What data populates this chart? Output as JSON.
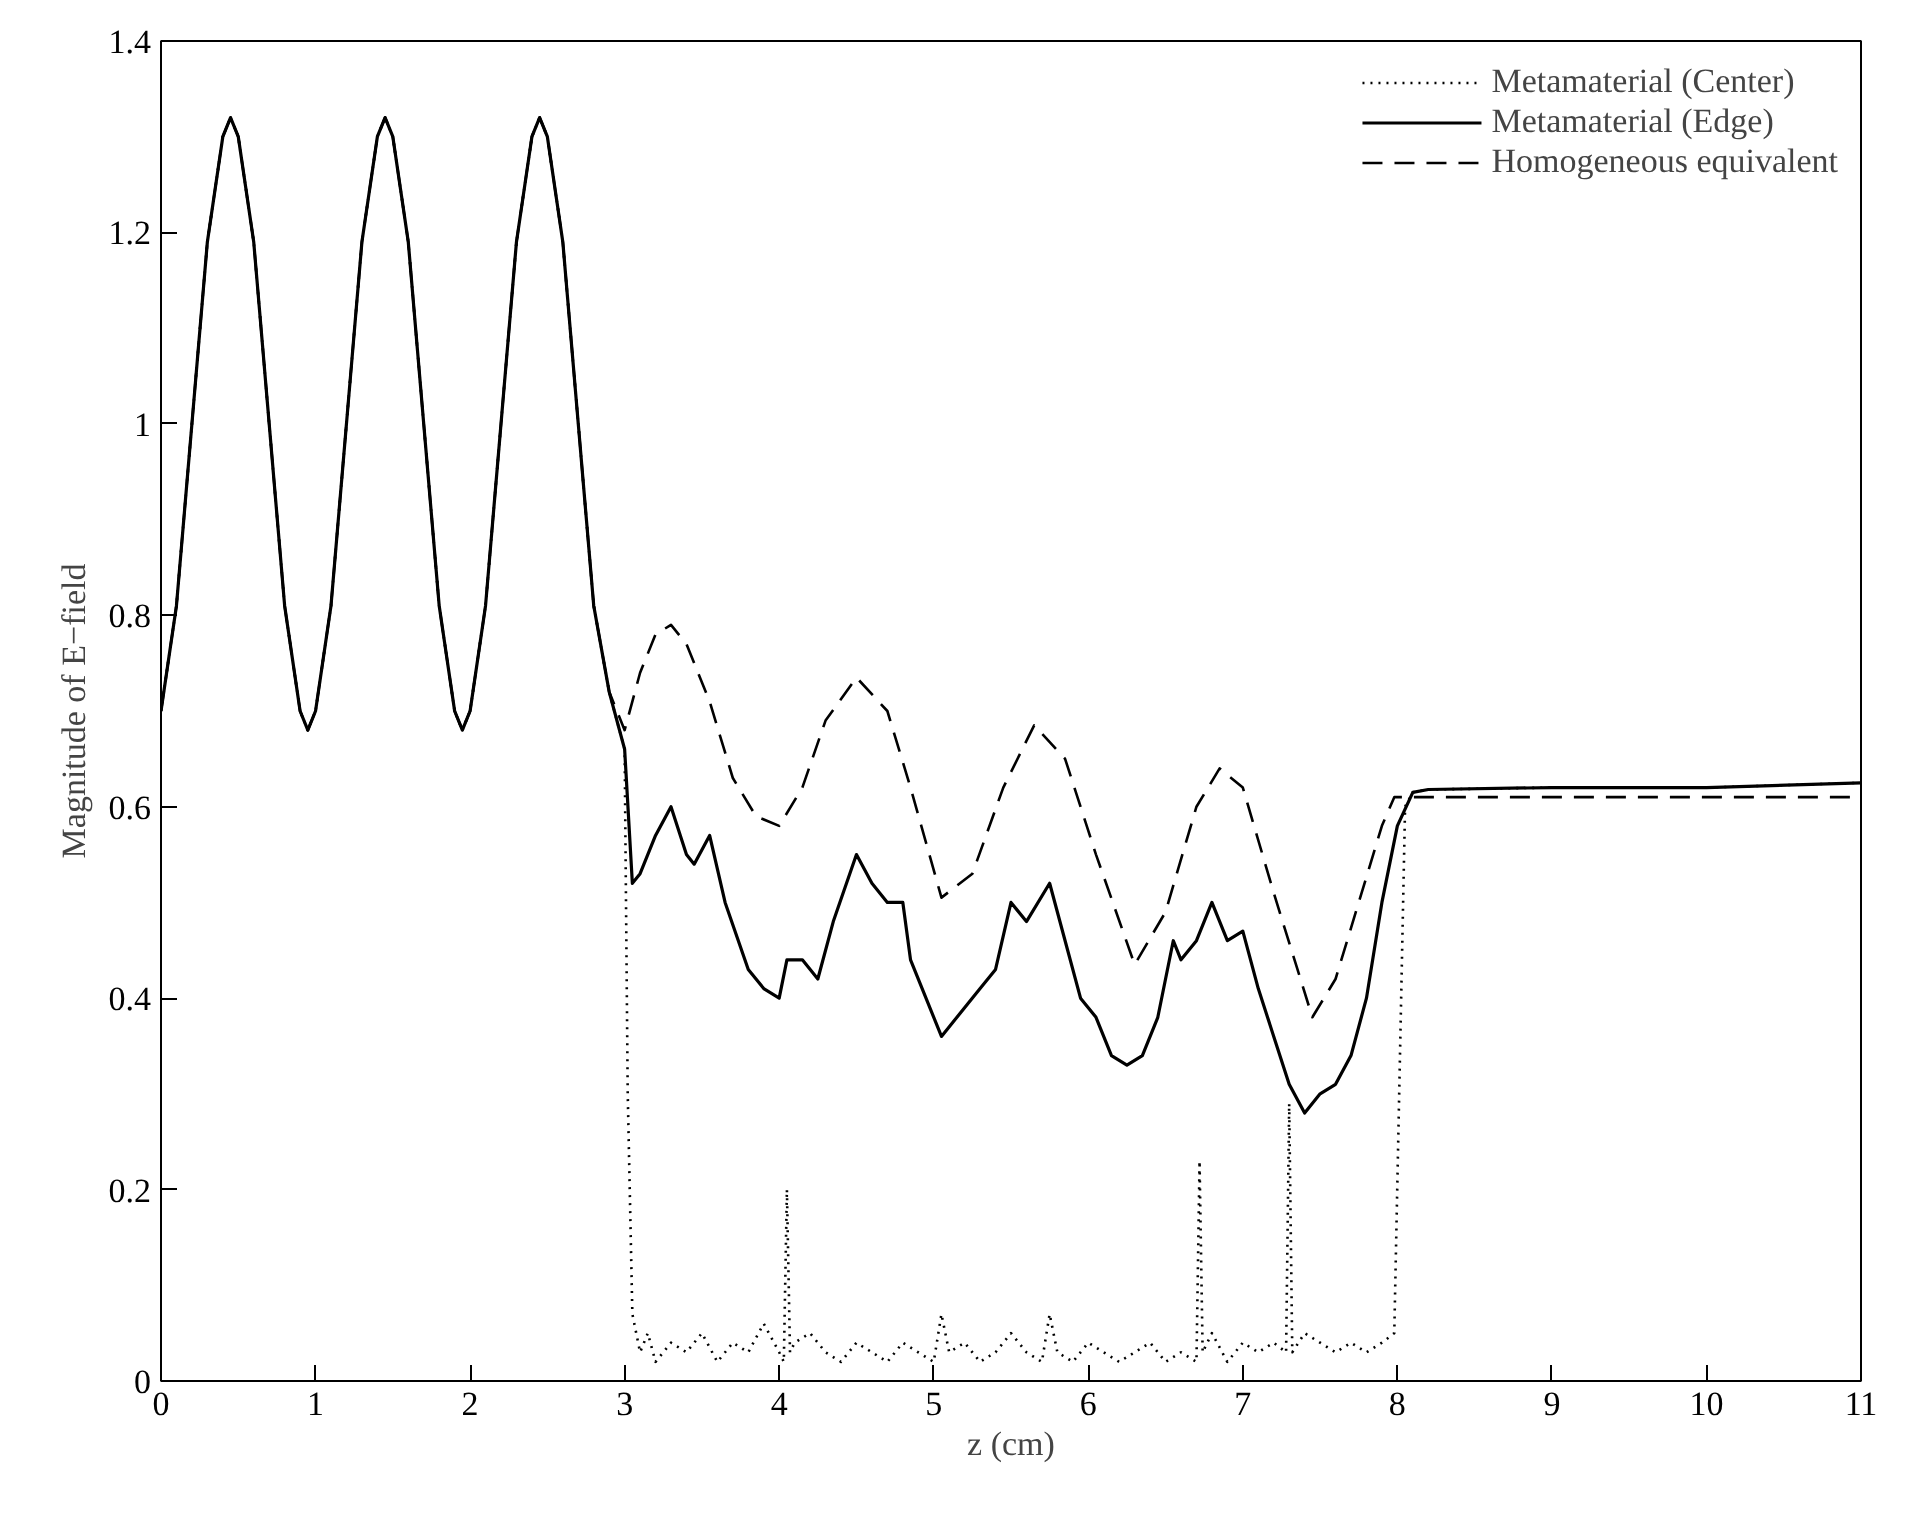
{
  "chart_data": {
    "type": "line",
    "xlabel": "z (cm)",
    "ylabel": "Magnitude of E−field",
    "xlim": [
      0,
      11
    ],
    "ylim": [
      0,
      1.4
    ],
    "xticks": [
      0,
      1,
      2,
      3,
      4,
      5,
      6,
      7,
      8,
      9,
      10,
      11
    ],
    "yticks": [
      0,
      {
        "value": 0.2,
        "label": "0.2"
      },
      {
        "value": 0.4,
        "label": "0.4"
      },
      {
        "value": 0.6,
        "label": "0.6"
      },
      {
        "value": 0.8,
        "label": "0.8"
      },
      1,
      {
        "value": 1.2,
        "label": "1.2"
      },
      {
        "value": 1.4,
        "label": "1.4"
      }
    ],
    "grid": false,
    "legend": "top right",
    "marker": "none",
    "series": [
      {
        "name": "Metamaterial (Center)",
        "color": "#000000",
        "line_style": "dotted",
        "x": [
          0,
          0.1,
          0.2,
          0.3,
          0.4,
          0.45,
          0.5,
          0.6,
          0.7,
          0.8,
          0.9,
          0.95,
          1.0,
          1.1,
          1.2,
          1.3,
          1.4,
          1.45,
          1.5,
          1.6,
          1.7,
          1.8,
          1.9,
          1.95,
          2.0,
          2.1,
          2.2,
          2.3,
          2.4,
          2.45,
          2.5,
          2.6,
          2.7,
          2.8,
          2.9,
          3.0,
          3.02,
          3.05,
          3.1,
          3.15,
          3.2,
          3.3,
          3.4,
          3.5,
          3.6,
          3.7,
          3.8,
          3.9,
          4.0,
          4.03,
          4.05,
          4.07,
          4.1,
          4.2,
          4.3,
          4.4,
          4.5,
          4.6,
          4.7,
          4.8,
          4.9,
          5.0,
          5.05,
          5.1,
          5.2,
          5.3,
          5.4,
          5.5,
          5.6,
          5.7,
          5.75,
          5.8,
          5.9,
          6.0,
          6.1,
          6.2,
          6.3,
          6.4,
          6.5,
          6.6,
          6.7,
          6.72,
          6.74,
          6.8,
          6.9,
          7.0,
          7.1,
          7.2,
          7.28,
          7.3,
          7.32,
          7.4,
          7.5,
          7.6,
          7.7,
          7.8,
          7.9,
          7.98,
          8.05,
          8.1,
          8.2,
          9,
          10,
          11
        ],
        "values": [
          0.7,
          0.81,
          1.0,
          1.19,
          1.3,
          1.32,
          1.3,
          1.19,
          1.0,
          0.81,
          0.7,
          0.68,
          0.7,
          0.81,
          1.0,
          1.19,
          1.3,
          1.32,
          1.3,
          1.19,
          1.0,
          0.81,
          0.7,
          0.68,
          0.7,
          0.81,
          1.0,
          1.19,
          1.3,
          1.32,
          1.3,
          1.19,
          1.0,
          0.81,
          0.72,
          0.66,
          0.3,
          0.07,
          0.03,
          0.05,
          0.02,
          0.04,
          0.03,
          0.05,
          0.02,
          0.04,
          0.03,
          0.06,
          0.03,
          0.02,
          0.2,
          0.03,
          0.04,
          0.05,
          0.03,
          0.02,
          0.04,
          0.03,
          0.02,
          0.04,
          0.03,
          0.02,
          0.07,
          0.03,
          0.04,
          0.02,
          0.03,
          0.05,
          0.03,
          0.02,
          0.07,
          0.03,
          0.02,
          0.04,
          0.03,
          0.02,
          0.03,
          0.04,
          0.02,
          0.03,
          0.02,
          0.23,
          0.03,
          0.05,
          0.02,
          0.04,
          0.03,
          0.04,
          0.03,
          0.29,
          0.03,
          0.05,
          0.04,
          0.03,
          0.04,
          0.03,
          0.04,
          0.05,
          0.6,
          0.615,
          0.618,
          0.62,
          0.62,
          0.625
        ]
      },
      {
        "name": "Metamaterial (Edge)",
        "color": "#000000",
        "line_style": "solid",
        "x": [
          0,
          0.1,
          0.2,
          0.3,
          0.4,
          0.45,
          0.5,
          0.6,
          0.7,
          0.8,
          0.9,
          0.95,
          1.0,
          1.1,
          1.2,
          1.3,
          1.4,
          1.45,
          1.5,
          1.6,
          1.7,
          1.8,
          1.9,
          1.95,
          2.0,
          2.1,
          2.2,
          2.3,
          2.4,
          2.45,
          2.5,
          2.6,
          2.7,
          2.8,
          2.9,
          3.0,
          3.05,
          3.1,
          3.2,
          3.3,
          3.4,
          3.45,
          3.55,
          3.65,
          3.8,
          3.9,
          4.0,
          4.05,
          4.15,
          4.25,
          4.35,
          4.5,
          4.6,
          4.7,
          4.8,
          4.85,
          4.95,
          5.05,
          5.15,
          5.3,
          5.4,
          5.5,
          5.6,
          5.75,
          5.85,
          5.95,
          6.05,
          6.15,
          6.25,
          6.35,
          6.45,
          6.55,
          6.6,
          6.7,
          6.8,
          6.9,
          7.0,
          7.1,
          7.2,
          7.3,
          7.4,
          7.5,
          7.6,
          7.7,
          7.8,
          7.9,
          8.0,
          8.1,
          8.2,
          9,
          10,
          11
        ],
        "values": [
          0.7,
          0.81,
          1.0,
          1.19,
          1.3,
          1.32,
          1.3,
          1.19,
          1.0,
          0.81,
          0.7,
          0.68,
          0.7,
          0.81,
          1.0,
          1.19,
          1.3,
          1.32,
          1.3,
          1.19,
          1.0,
          0.81,
          0.7,
          0.68,
          0.7,
          0.81,
          1.0,
          1.19,
          1.3,
          1.32,
          1.3,
          1.19,
          1.0,
          0.81,
          0.72,
          0.66,
          0.52,
          0.53,
          0.57,
          0.6,
          0.55,
          0.54,
          0.57,
          0.5,
          0.43,
          0.41,
          0.4,
          0.44,
          0.44,
          0.42,
          0.48,
          0.55,
          0.52,
          0.5,
          0.5,
          0.44,
          0.4,
          0.36,
          0.38,
          0.41,
          0.43,
          0.5,
          0.48,
          0.52,
          0.46,
          0.4,
          0.38,
          0.34,
          0.33,
          0.34,
          0.38,
          0.46,
          0.44,
          0.46,
          0.5,
          0.46,
          0.47,
          0.41,
          0.36,
          0.31,
          0.28,
          0.3,
          0.31,
          0.34,
          0.4,
          0.5,
          0.58,
          0.615,
          0.618,
          0.62,
          0.62,
          0.625
        ]
      },
      {
        "name": "Homogeneous equivalent",
        "color": "#000000",
        "line_style": "dashed",
        "x": [
          0,
          0.1,
          0.2,
          0.3,
          0.4,
          0.45,
          0.5,
          0.6,
          0.7,
          0.8,
          0.9,
          0.95,
          1.0,
          1.1,
          1.2,
          1.3,
          1.4,
          1.45,
          1.5,
          1.6,
          1.7,
          1.8,
          1.9,
          1.95,
          2.0,
          2.1,
          2.2,
          2.3,
          2.4,
          2.45,
          2.5,
          2.6,
          2.7,
          2.8,
          2.9,
          3.0,
          3.1,
          3.2,
          3.3,
          3.4,
          3.55,
          3.7,
          3.85,
          4.0,
          4.15,
          4.3,
          4.5,
          4.7,
          4.85,
          5.05,
          5.25,
          5.45,
          5.65,
          5.85,
          6.05,
          6.3,
          6.5,
          6.7,
          6.85,
          7.0,
          7.2,
          7.45,
          7.6,
          7.75,
          7.9,
          7.98,
          8.5,
          9,
          10,
          11
        ],
        "values": [
          0.7,
          0.81,
          1.0,
          1.19,
          1.3,
          1.32,
          1.3,
          1.19,
          1.0,
          0.81,
          0.7,
          0.68,
          0.7,
          0.81,
          1.0,
          1.19,
          1.3,
          1.32,
          1.3,
          1.19,
          1.0,
          0.81,
          0.7,
          0.68,
          0.7,
          0.81,
          1.0,
          1.19,
          1.3,
          1.32,
          1.3,
          1.19,
          1.0,
          0.81,
          0.72,
          0.68,
          0.74,
          0.78,
          0.79,
          0.77,
          0.71,
          0.63,
          0.59,
          0.58,
          0.62,
          0.69,
          0.735,
          0.7,
          0.62,
          0.505,
          0.53,
          0.62,
          0.685,
          0.65,
          0.55,
          0.435,
          0.49,
          0.6,
          0.64,
          0.62,
          0.51,
          0.38,
          0.42,
          0.5,
          0.58,
          0.61,
          0.61,
          0.61,
          0.61,
          0.61
        ]
      }
    ]
  }
}
